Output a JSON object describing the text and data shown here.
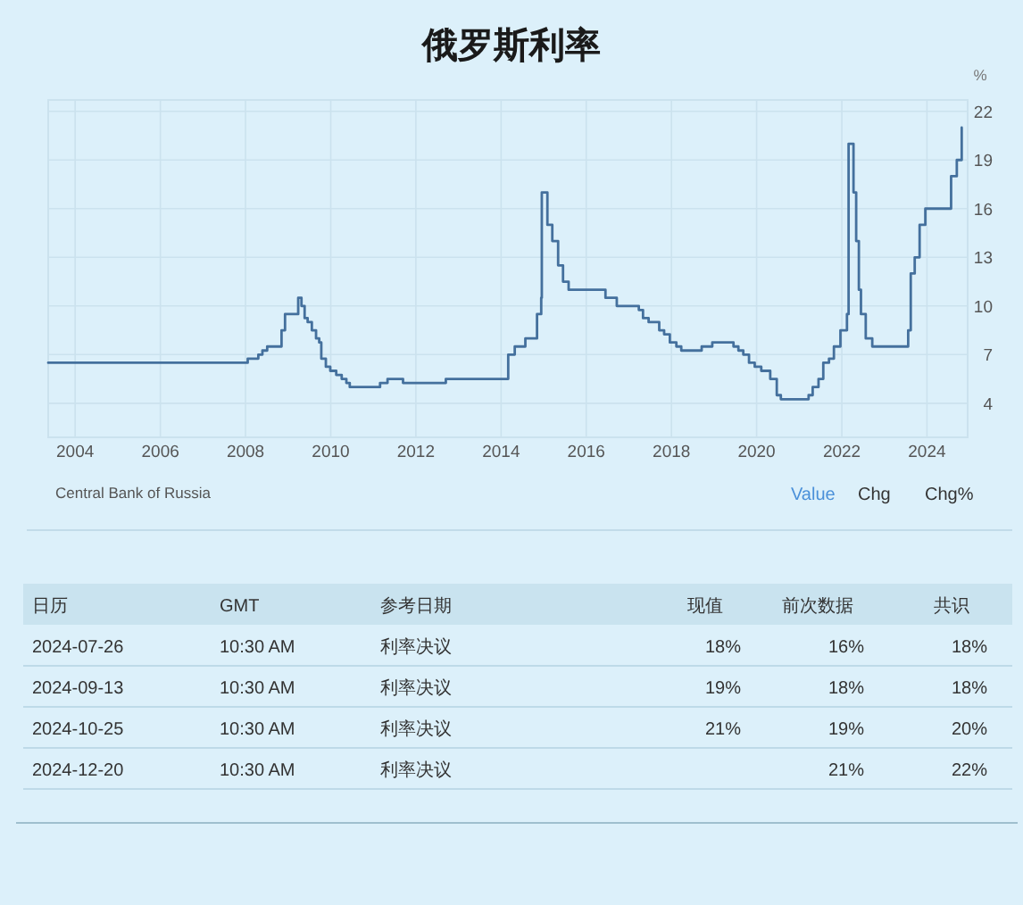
{
  "chart_data": [
    {
      "type": "step",
      "title": "俄罗斯利率",
      "ylabel": "%",
      "annotations": [
        "Central Bank of Russia",
        "Value",
        "Chg",
        "Chg%"
      ],
      "x": [
        "2003-05-15",
        "2008-01-20",
        "2008-04-20",
        "2008-05-25",
        "2008-07-05",
        "2008-11-05",
        "2008-12-05",
        "2009-03-28",
        "2009-04-25",
        "2009-05-22",
        "2009-06-17",
        "2009-07-23",
        "2009-08-28",
        "2009-09-24",
        "2009-10-12",
        "2009-11-20",
        "2009-12-28",
        "2010-02-17",
        "2010-04-05",
        "2010-05-15",
        "2010-06-13",
        "2011-02-28",
        "2011-05-03",
        "2011-09-13",
        "2012-09-14",
        "2014-03-03",
        "2014-04-28",
        "2014-07-28",
        "2014-11-05",
        "2014-12-11",
        "2014-12-16",
        "2015-02-02",
        "2015-03-16",
        "2015-05-05",
        "2015-06-16",
        "2015-08-03",
        "2016-06-14",
        "2016-09-19",
        "2017-03-27",
        "2017-05-02",
        "2017-06-19",
        "2017-09-18",
        "2017-10-30",
        "2017-12-18",
        "2018-02-12",
        "2018-03-26",
        "2018-09-17",
        "2018-12-17",
        "2019-06-17",
        "2019-07-29",
        "2019-09-09",
        "2019-10-28",
        "2019-12-16",
        "2020-02-10",
        "2020-04-27",
        "2020-06-22",
        "2020-07-27",
        "2021-03-22",
        "2021-04-26",
        "2021-06-15",
        "2021-07-26",
        "2021-09-13",
        "2021-10-25",
        "2021-12-20",
        "2022-02-14",
        "2022-02-28",
        "2022-04-11",
        "2022-05-04",
        "2022-05-27",
        "2022-06-14",
        "2022-07-25",
        "2022-09-19",
        "2023-07-24",
        "2023-08-15",
        "2023-09-18",
        "2023-10-30",
        "2023-12-18",
        "2024-07-26",
        "2024-09-13",
        "2024-10-25"
      ],
      "values": [
        6.5,
        6.75,
        7,
        7.25,
        7.5,
        8.5,
        9.5,
        10.5,
        10,
        9.25,
        9,
        8.5,
        8,
        7.75,
        6.75,
        6.25,
        6,
        5.75,
        5.5,
        5.25,
        5,
        5.25,
        5.5,
        5.25,
        5.5,
        7,
        7.5,
        8,
        9.5,
        10.5,
        17,
        15,
        14,
        12.5,
        11.5,
        11,
        10.5,
        10,
        9.75,
        9.25,
        9,
        8.5,
        8.25,
        7.75,
        7.5,
        7.25,
        7.5,
        7.75,
        7.5,
        7.25,
        7,
        6.5,
        6.25,
        6,
        5.5,
        4.5,
        4.25,
        4.5,
        5,
        5.5,
        6.5,
        6.75,
        7.5,
        8.5,
        9.5,
        20,
        17,
        14,
        11,
        9.5,
        8,
        7.5,
        8.5,
        12,
        13,
        15,
        16,
        18,
        19,
        21
      ],
      "color": "#44709d",
      "xlim": [
        "2003-05-15",
        "2024-12-15"
      ],
      "ylim": [
        1.9,
        22.7
      ],
      "xticks": [
        "2004",
        "2006",
        "2008",
        "2010",
        "2012",
        "2014",
        "2016",
        "2018",
        "2020",
        "2022",
        "2024"
      ],
      "yticks": [
        4,
        7,
        10,
        13,
        16,
        19,
        22
      ],
      "grid": true
    },
    {
      "type": "other",
      "categories": [
        "日历",
        "GMT",
        "参考日期",
        "现值",
        "前次数据",
        "共识"
      ],
      "cell_labels": [
        [
          "2024-07-26",
          "10:30 AM",
          "利率决议",
          "18%",
          "16%",
          "18%"
        ],
        [
          "2024-09-13",
          "10:30 AM",
          "利率决议",
          "19%",
          "18%",
          "18%"
        ],
        [
          "2024-10-25",
          "10:30 AM",
          "利率决议",
          "21%",
          "19%",
          "20%"
        ],
        [
          "2024-12-20",
          "10:30 AM",
          "利率决议",
          null,
          "21%",
          "22%"
        ]
      ]
    }
  ]
}
